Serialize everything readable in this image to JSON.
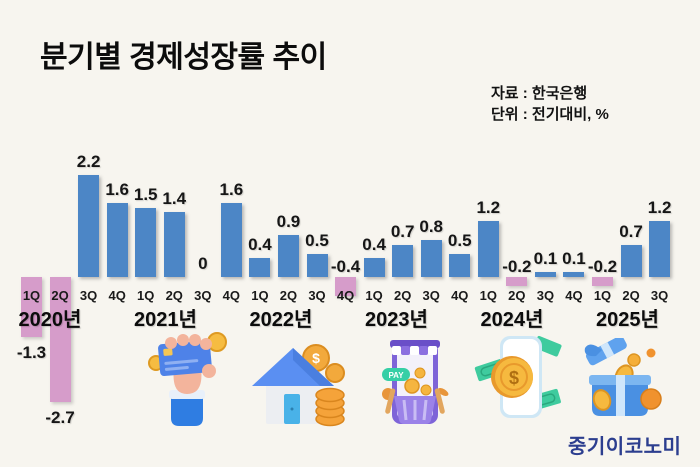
{
  "title": "분기별 경제성장률 추이",
  "source": {
    "line1": "자료 : 한국은행",
    "line2": "단위 : 전기대비, %"
  },
  "logo": "중기이코노미",
  "colors": {
    "background": "#f7f5ef",
    "positive_bar": "#4c86c6",
    "negative_bar": "#d69cca",
    "text": "#0c0c0c",
    "logo_blue": "#2c3e8f"
  },
  "chart_data": {
    "type": "bar",
    "title": "분기별 경제성장률 추이",
    "source": "한국은행",
    "unit": "전기대비, %",
    "grid": false,
    "legend": "none",
    "ylim": [
      -3,
      2.5
    ],
    "years": [
      {
        "label": "2020년",
        "quarters": [
          "1Q",
          "2Q",
          "3Q",
          "4Q"
        ],
        "values": [
          -1.3,
          -2.7,
          2.2,
          1.6
        ]
      },
      {
        "label": "2021년",
        "quarters": [
          "1Q",
          "2Q",
          "3Q",
          "4Q"
        ],
        "values": [
          1.5,
          1.4,
          0,
          1.6
        ]
      },
      {
        "label": "2022년",
        "quarters": [
          "1Q",
          "2Q",
          "3Q",
          "4Q"
        ],
        "values": [
          0.4,
          0.9,
          0.5,
          -0.4
        ]
      },
      {
        "label": "2023년",
        "quarters": [
          "1Q",
          "2Q",
          "3Q",
          "4Q"
        ],
        "values": [
          0.4,
          0.7,
          0.8,
          0.5
        ]
      },
      {
        "label": "2024년",
        "quarters": [
          "1Q",
          "2Q",
          "3Q",
          "4Q"
        ],
        "values": [
          1.2,
          -0.2,
          0.1,
          0.1
        ]
      },
      {
        "label": "2025년",
        "quarters": [
          "1Q",
          "2Q",
          "3Q"
        ],
        "values": [
          -0.2,
          0.7,
          1.2
        ]
      }
    ]
  },
  "illustrations": {
    "names": [
      "hand-holding-credit-card-icon",
      "house-with-coins-icon",
      "mobile-pay-shopping-basket-icon",
      "phone-with-dollar-coin-icon",
      "gift-box-with-coins-icon"
    ],
    "pay_label": "PAY",
    "dollar_symbol": "$"
  }
}
